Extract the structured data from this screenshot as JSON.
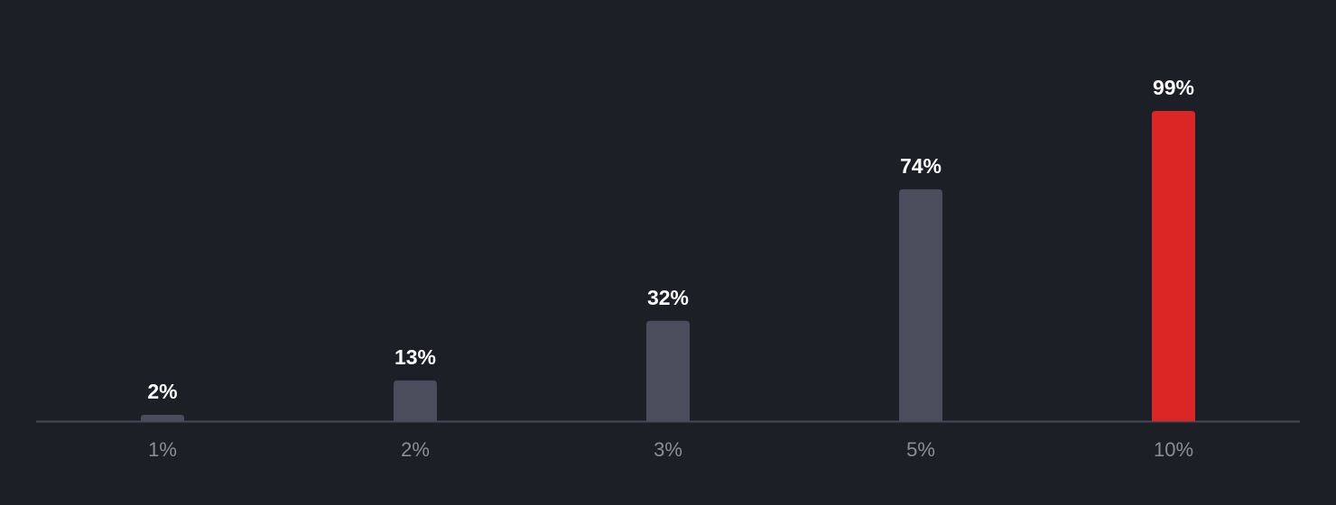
{
  "chart_data": {
    "type": "bar",
    "categories": [
      "1%",
      "2%",
      "3%",
      "5%",
      "10%"
    ],
    "values": [
      2,
      13,
      32,
      74,
      99
    ],
    "value_labels": [
      "2%",
      "13%",
      "32%",
      "74%",
      "99%"
    ],
    "colors": [
      "#4a4e5c",
      "#4a4e5c",
      "#4a4e5c",
      "#4a4e5c",
      "#dc2626"
    ]
  }
}
